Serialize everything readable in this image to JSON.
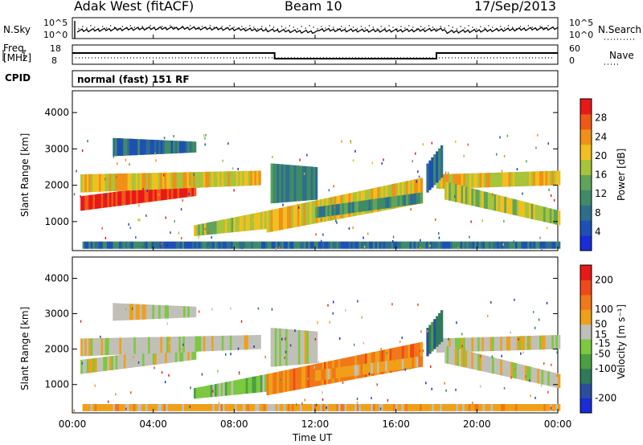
{
  "header": {
    "station": "Adak West (fitACF)",
    "beam": "Beam 10",
    "date": "17/Sep/2013"
  },
  "top_panels": {
    "nsky_label": "N.Sky",
    "nsky_ticks": [
      "10^5",
      "10^0"
    ],
    "nsearch_label": "N.Search",
    "nsearch_ticks": [
      "10^5",
      "10^0"
    ],
    "freq_label_line1": "Freq.",
    "freq_label_line2": "[MHz]",
    "freq_ticks": [
      "18",
      "8"
    ],
    "nave_label": "Nave",
    "nave_ticks": [
      "60",
      "0"
    ],
    "cpid_label": "CPID",
    "cpid_text": "normal (fast) 151 RF"
  },
  "colors": {
    "power_scale": [
      "#1a2bd8",
      "#1e50b4",
      "#2e6e8c",
      "#3f8b68",
      "#5fa45a",
      "#a8c43a",
      "#f0c020",
      "#f09018",
      "#f05818",
      "#e81818"
    ],
    "velocity_scale": [
      "#1a2bd8",
      "#2a4e9e",
      "#2e7a5a",
      "#4aa040",
      "#7cc840",
      "#c0c0b8",
      "#f0a018",
      "#f07818",
      "#f04818",
      "#e81818"
    ]
  },
  "chart_data": [
    {
      "type": "heatmap",
      "name": "power",
      "ylabel": "Slant Range [km]",
      "yticks": [
        "1000",
        "2000",
        "3000",
        "4000"
      ],
      "ylim": [
        200,
        4600
      ],
      "xlim": [
        "00:00",
        "24:00"
      ],
      "colorbar_label": "Power [dB]",
      "colorbar_ticks": [
        "4",
        "8",
        "12",
        "16",
        "20",
        "24",
        "28"
      ],
      "colorbar_range": [
        0,
        32
      ]
    },
    {
      "type": "heatmap",
      "name": "velocity",
      "ylabel": "Slant Range [km]",
      "yticks": [
        "1000",
        "2000",
        "3000",
        "4000"
      ],
      "ylim": [
        200,
        4600
      ],
      "xlim": [
        "00:00",
        "24:00"
      ],
      "colorbar_label": "Velocity [m s⁻¹]",
      "colorbar_ticks": [
        "-200",
        "-100",
        "-50",
        "-15",
        "15",
        "50",
        "100",
        "200"
      ],
      "colorbar_range": [
        -250,
        250
      ]
    }
  ],
  "xaxis": {
    "ticks": [
      "00:00",
      "04:00",
      "08:00",
      "12:00",
      "16:00",
      "20:00",
      "00:00"
    ],
    "label": "Time UT"
  }
}
